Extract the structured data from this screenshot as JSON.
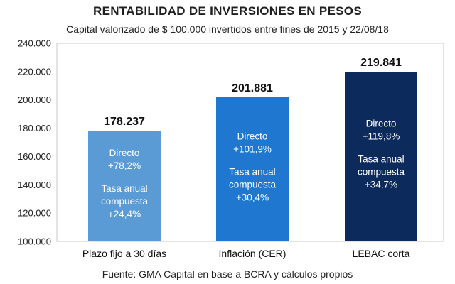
{
  "title": "RENTABILIDAD DE INVERSIONES EN PESOS",
  "subtitle": "Capital valorizado de $ 100.000 invertidos entre fines de 2015 y 22/08/18",
  "source": "Fuente: GMA Capital en base a BCRA y cálculos propios",
  "chart_data": {
    "type": "bar",
    "title": "RENTABILIDAD DE INVERSIONES EN PESOS",
    "subtitle": "Capital valorizado de $ 100.000 invertidos entre fines de 2015 y 22/08/18",
    "categories": [
      "Plazo fijo a 30 días",
      "Inflación (CER)",
      "LEBAC corta"
    ],
    "values": [
      178237,
      201881,
      219841
    ],
    "value_labels": [
      "178.237",
      "201.881",
      "219.841"
    ],
    "ylim": [
      100000,
      240000
    ],
    "yticks": [
      "100.000",
      "120.000",
      "140.000",
      "160.000",
      "180.000",
      "200.000",
      "220.000",
      "240.000"
    ],
    "ytick_values": [
      100000,
      120000,
      140000,
      160000,
      180000,
      200000,
      220000,
      240000
    ],
    "grid": false,
    "bar_colors": [
      "#5b9bd5",
      "#1f77cf",
      "#0d2a5c"
    ],
    "annotations": [
      {
        "directo_label": "Directo",
        "directo_value": "+78,2%",
        "tasa_label_1": "Tasa anual",
        "tasa_label_2": "compuesta",
        "tasa_value": "+24,4%"
      },
      {
        "directo_label": "Directo",
        "directo_value": "+101,9%",
        "tasa_label_1": "Tasa anual",
        "tasa_label_2": "compuesta",
        "tasa_value": "+30,4%"
      },
      {
        "directo_label": "Directo",
        "directo_value": "+119,8%",
        "tasa_label_1": "Tasa anual",
        "tasa_label_2": "compuesta",
        "tasa_value": "+34,7%"
      }
    ]
  }
}
